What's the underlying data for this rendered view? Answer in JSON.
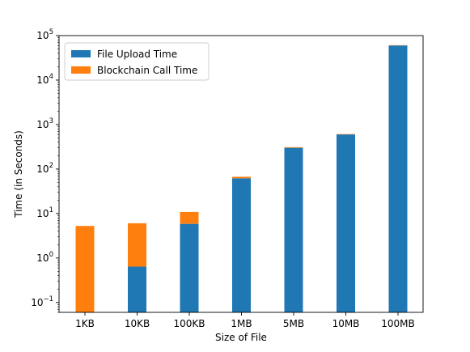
{
  "chart_data": {
    "type": "bar",
    "stacked": true,
    "yscale": "log",
    "ylim": [
      0.06,
      100000
    ],
    "categories": [
      "1KB",
      "10KB",
      "100KB",
      "1MB",
      "5MB",
      "10MB",
      "100MB"
    ],
    "series": [
      {
        "name": "File Upload Time",
        "color": "#1f77b4",
        "values": [
          0,
          0.58,
          5.8,
          62,
          300,
          600,
          60000
        ]
      },
      {
        "name": "Blockchain Call Time",
        "color": "#ff7f0e",
        "values": [
          5.2,
          5.4,
          5.0,
          5.0,
          10,
          12,
          1000
        ]
      }
    ],
    "xlabel": "Size of File",
    "ylabel": "Time (in Seconds)",
    "yticks": [
      {
        "value": 0.1,
        "base": "10",
        "exp": "−1"
      },
      {
        "value": 1,
        "base": "10",
        "exp": "0"
      },
      {
        "value": 10,
        "base": "10",
        "exp": "1"
      },
      {
        "value": 100,
        "base": "10",
        "exp": "2"
      },
      {
        "value": 1000,
        "base": "10",
        "exp": "3"
      },
      {
        "value": 10000,
        "base": "10",
        "exp": "4"
      },
      {
        "value": 100000,
        "base": "10",
        "exp": "5"
      }
    ],
    "legend_position": "top-left",
    "grid": false
  }
}
